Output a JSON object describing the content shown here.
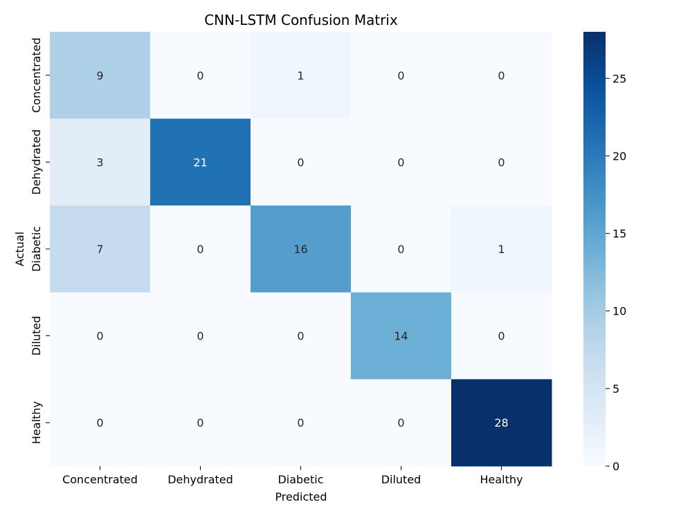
{
  "chart_data": {
    "type": "heatmap",
    "title": "CNN-LSTM Confusion Matrix",
    "xlabel": "Predicted",
    "ylabel": "Actual",
    "x_categories": [
      "Concentrated",
      "Dehydrated",
      "Diabetic",
      "Diluted",
      "Healthy"
    ],
    "y_categories": [
      "Concentrated",
      "Dehydrated",
      "Diabetic",
      "Diluted",
      "Healthy"
    ],
    "values": [
      [
        9,
        0,
        1,
        0,
        0
      ],
      [
        3,
        21,
        0,
        0,
        0
      ],
      [
        7,
        0,
        16,
        0,
        1
      ],
      [
        0,
        0,
        0,
        14,
        0
      ],
      [
        0,
        0,
        0,
        0,
        28
      ]
    ],
    "colormap": "Blues",
    "color_range": [
      0,
      28
    ],
    "colorbar_ticks": [
      0,
      5,
      10,
      15,
      20,
      25
    ],
    "colorbar_low_color": "#f7fbff",
    "colorbar_high_color": "#08306b"
  }
}
